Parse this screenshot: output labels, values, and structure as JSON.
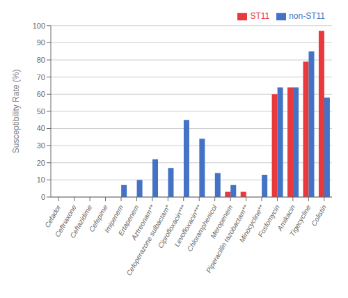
{
  "chart_data": {
    "type": "bar",
    "categories": [
      "Cefador",
      "Ceftriaxone",
      "Ceftazidime",
      "Cefepime",
      "Imipenem",
      "Ertapenem",
      "Aztreonam**",
      "Cefoperazone sulbactam*",
      "Ciprofloxacin***",
      "Levofloxacin***",
      "Chloramphenicol",
      "Meropenem",
      "Piperacillin tazobactam**",
      "Minocycline**",
      "Fosfomycin",
      "Amikacin",
      "Tigecycline",
      "Colistin"
    ],
    "series": [
      {
        "name": "ST11",
        "color": "#e8393c",
        "values": [
          0,
          0,
          0,
          0,
          0,
          0,
          0,
          0,
          0,
          0,
          0,
          3,
          3,
          0,
          60,
          64,
          79,
          97
        ]
      },
      {
        "name": "non-ST11",
        "color": "#4472c4",
        "values": [
          0,
          0,
          0,
          0,
          7,
          10,
          22,
          17,
          45,
          34,
          14,
          7,
          0,
          13,
          64,
          64,
          85,
          58
        ]
      }
    ],
    "ylabel": "Susceptibility Rate (%)",
    "ylim": [
      0,
      100
    ],
    "yticks": [
      0,
      10,
      20,
      30,
      40,
      50,
      60,
      70,
      80,
      90,
      100
    ],
    "grid": true,
    "legend": "upper right"
  }
}
